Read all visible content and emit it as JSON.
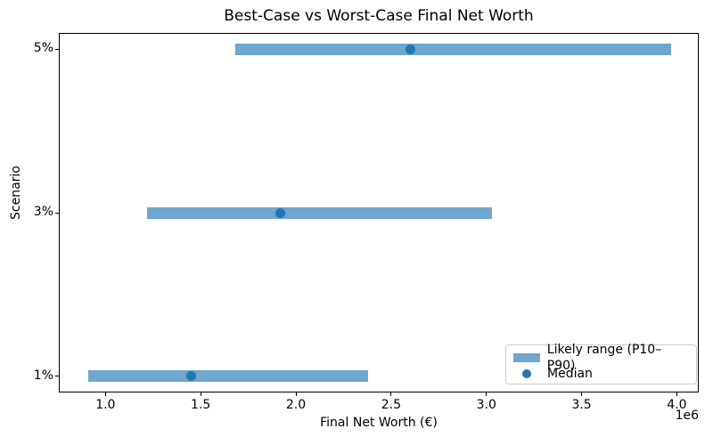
{
  "chart_data": {
    "type": "bar",
    "subtype": "horizontal_range_with_median_dot",
    "title": "Best-Case vs Worst-Case Final Net Worth",
    "xlabel": "Final Net Worth (€)",
    "ylabel": "Scenario",
    "x_scale_offset_label": "1e6",
    "categories": [
      "5%",
      "3%",
      "1%"
    ],
    "series": [
      {
        "name": "Likely range (P10–P90)",
        "type": "range_bar",
        "p10": [
          1680000,
          1220000,
          910000
        ],
        "p90": [
          3970000,
          3030000,
          2380000
        ]
      },
      {
        "name": "Median",
        "type": "point",
        "values": [
          2600000,
          1920000,
          1450000
        ]
      }
    ],
    "xlim": [
      755000,
      4115000
    ],
    "xticks": [
      1000000,
      1500000,
      2000000,
      2500000,
      3000000,
      3500000,
      4000000
    ],
    "xtick_labels": [
      "1.0",
      "1.5",
      "2.0",
      "2.5",
      "3.0",
      "3.5",
      "4.0"
    ],
    "grid": false,
    "legend": {
      "position": "lower right",
      "entries": [
        "Likely range (P10–P90)",
        "Median"
      ]
    },
    "colors": {
      "range_bar": "#6EA6CE",
      "median_dot": "#1F77B4",
      "spine": "#000000",
      "text": "#000000",
      "legend_border": "#CCCCCC"
    }
  }
}
